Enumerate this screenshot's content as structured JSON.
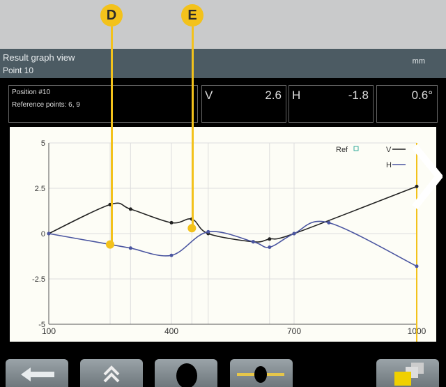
{
  "callouts": {
    "d": "D",
    "e": "E"
  },
  "header": {
    "title": "Result graph view",
    "subtitle": "Point 10",
    "unit": "mm"
  },
  "info": {
    "position": "Position #10",
    "reference": "Reference points: 6, 9"
  },
  "readouts": {
    "v_label": "V",
    "v_value": "2.6",
    "h_label": "H",
    "h_value": "-1.8",
    "angle_value": "0.6°"
  },
  "chart_data": {
    "type": "line",
    "xlim": [
      100,
      1000
    ],
    "ylim": [
      -5,
      5
    ],
    "xticks": [
      "100",
      "400",
      "700",
      "1000"
    ],
    "yticks": [
      "5",
      "2.5",
      "0",
      "-2.5",
      "-5"
    ],
    "grid": true,
    "legend_placement": "top-right",
    "legend": {
      "ref": "Ref",
      "v": "V",
      "h": "H"
    },
    "vertical_gridlines": [
      250,
      300,
      400,
      450,
      490,
      640,
      700
    ],
    "series": [
      {
        "name": "V",
        "color": "#222222",
        "x": [
          100,
          250,
          300,
          400,
          450,
          490,
          600,
          640,
          700,
          1000
        ],
        "y": [
          0,
          1.6,
          1.35,
          0.6,
          0.8,
          0,
          -0.45,
          -0.3,
          0,
          2.6
        ]
      },
      {
        "name": "H",
        "color": "#4a55a0",
        "x": [
          100,
          250,
          300,
          400,
          490,
          600,
          640,
          700,
          785,
          1000
        ],
        "y": [
          0,
          -0.6,
          -0.8,
          -1.2,
          0.1,
          -0.45,
          -0.75,
          0,
          0.6,
          -1.8
        ]
      }
    ],
    "markers": [
      {
        "label": "D",
        "x": 250,
        "y": -0.6
      },
      {
        "label": "E",
        "x": 450,
        "y": 0.3
      }
    ],
    "highlight_x": 1000
  },
  "colors": {
    "accent": "#f3c21b",
    "header": "#4c5b63"
  },
  "toolbar": [
    "back-arrow-icon",
    "double-chevron-up-icon",
    "circle-icon",
    "level-icon",
    "folders-icon"
  ]
}
